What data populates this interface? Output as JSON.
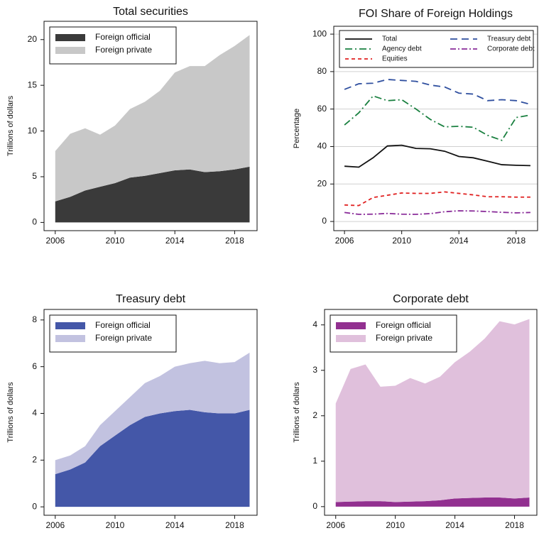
{
  "chart_data": [
    {
      "type": "area",
      "title": "Total securities",
      "y_label": "Trillions of dollars",
      "x": [
        2006,
        2007,
        2008,
        2009,
        2010,
        2011,
        2012,
        2013,
        2014,
        2015,
        2016,
        2017,
        2018,
        2019
      ],
      "xlim": [
        2005.25,
        2019.5
      ],
      "xticks": [
        2006,
        2010,
        2014,
        2018
      ],
      "ylim": [
        -0.9,
        22
      ],
      "yticks": [
        0,
        5,
        10,
        15,
        20
      ],
      "grid": false,
      "legend": "upper left",
      "series": [
        {
          "name": "Foreign official",
          "color": "#3a3a3a",
          "values": [
            2.3,
            2.8,
            3.5,
            3.9,
            4.3,
            4.9,
            5.1,
            5.4,
            5.7,
            5.8,
            5.5,
            5.6,
            5.8,
            6.1
          ]
        },
        {
          "name": "Foreign private",
          "color": "#c8c8c8",
          "values": [
            5.5,
            6.9,
            6.8,
            5.7,
            6.3,
            7.5,
            8.1,
            9.0,
            10.7,
            11.3,
            11.6,
            12.7,
            13.5,
            14.4
          ]
        }
      ]
    },
    {
      "type": "line",
      "title": "FOI Share of Foreign Holdings",
      "y_label": "Percentage",
      "x": [
        2006,
        2007,
        2008,
        2009,
        2010,
        2011,
        2012,
        2013,
        2014,
        2015,
        2016,
        2017,
        2018,
        2019
      ],
      "xlim": [
        2005.25,
        2019.5
      ],
      "xticks": [
        2006,
        2010,
        2014,
        2018
      ],
      "ylim": [
        -4.9,
        104.2
      ],
      "yticks": [
        0,
        20,
        40,
        60,
        80,
        100
      ],
      "grid": true,
      "legend": "top",
      "series": [
        {
          "name": "Total",
          "color": "#111111",
          "dash": "none",
          "values": [
            29.5,
            29,
            34,
            40.3,
            40.7,
            39,
            38.8,
            37.5,
            34.7,
            34,
            32.2,
            30.3,
            30,
            29.8
          ]
        },
        {
          "name": "Treasury debt",
          "color": "#2f4f9f",
          "dash": "10,6",
          "values": [
            70.5,
            73.5,
            73.8,
            75.8,
            75.3,
            74.8,
            72.8,
            71.8,
            68.5,
            68,
            64.5,
            65,
            64.5,
            62.5
          ]
        },
        {
          "name": "Agency debt",
          "color": "#1a8040",
          "dash": "10,4,2,4",
          "values": [
            51.5,
            58,
            67,
            64.5,
            65,
            60,
            54.5,
            50.5,
            50.8,
            50.3,
            46,
            43.3,
            55.5,
            56.8
          ]
        },
        {
          "name": "Corporate debt",
          "color": "#8a2d9a",
          "dash": "8,3,2,3",
          "values": [
            4.8,
            3.8,
            3.9,
            4.3,
            3.9,
            3.8,
            4.2,
            5.2,
            5.7,
            5.6,
            5.3,
            4.9,
            4.6,
            4.8
          ]
        },
        {
          "name": "Equities",
          "color": "#e02020",
          "dash": "5,4",
          "values": [
            8.8,
            8.5,
            12.8,
            14,
            15.2,
            15,
            15,
            15.8,
            15,
            14.2,
            13.2,
            13.2,
            13,
            13
          ]
        }
      ]
    },
    {
      "type": "area",
      "title": "Treasury debt",
      "y_label": "Trillions of dollars",
      "x": [
        2006,
        2007,
        2008,
        2009,
        2010,
        2011,
        2012,
        2013,
        2014,
        2015,
        2016,
        2017,
        2018,
        2019
      ],
      "xlim": [
        2005.25,
        2019.5
      ],
      "xticks": [
        2006,
        2010,
        2014,
        2018
      ],
      "ylim": [
        -0.36,
        8.45
      ],
      "yticks": [
        0,
        2,
        4,
        6,
        8
      ],
      "grid": false,
      "legend": "upper left",
      "series": [
        {
          "name": "Foreign official",
          "color": "#4457a8",
          "values": [
            1.4,
            1.6,
            1.9,
            2.6,
            3.05,
            3.5,
            3.85,
            4.0,
            4.1,
            4.15,
            4.05,
            4.0,
            4.0,
            4.15
          ]
        },
        {
          "name": "Foreign private",
          "color": "#c2c2e0",
          "values": [
            0.6,
            0.6,
            0.7,
            0.9,
            1.05,
            1.2,
            1.45,
            1.6,
            1.9,
            2.0,
            2.2,
            2.15,
            2.2,
            2.45
          ]
        }
      ]
    },
    {
      "type": "area",
      "title": "Corporate debt",
      "y_label": "Trillions of dollars",
      "x": [
        2006,
        2007,
        2008,
        2009,
        2010,
        2011,
        2012,
        2013,
        2014,
        2015,
        2016,
        2017,
        2018,
        2019
      ],
      "xlim": [
        2005.25,
        2019.5
      ],
      "xticks": [
        2006,
        2010,
        2014,
        2018
      ],
      "ylim": [
        -0.19,
        4.34
      ],
      "yticks": [
        0,
        1,
        2,
        3,
        4
      ],
      "grid": false,
      "legend": "upper left",
      "series": [
        {
          "name": "Foreign official",
          "color": "#923090",
          "values": [
            0.1,
            0.11,
            0.12,
            0.12,
            0.1,
            0.11,
            0.12,
            0.14,
            0.18,
            0.19,
            0.2,
            0.2,
            0.18,
            0.2
          ]
        },
        {
          "name": "Foreign private",
          "color": "#e0c0dc",
          "values": [
            2.17,
            2.92,
            3.01,
            2.52,
            2.56,
            2.72,
            2.59,
            2.72,
            3.0,
            3.22,
            3.5,
            3.88,
            3.83,
            3.93
          ]
        }
      ]
    }
  ]
}
